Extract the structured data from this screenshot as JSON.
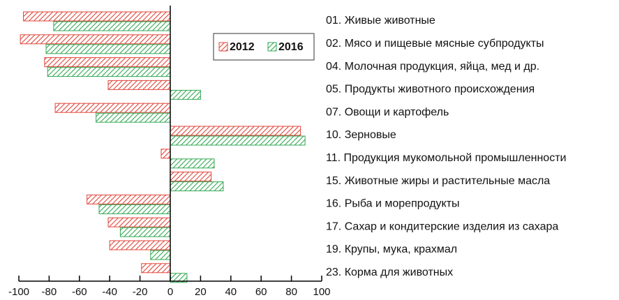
{
  "chart_data": {
    "type": "bar",
    "orientation": "horizontal",
    "categories": [
      "01. Живые животные",
      "02. Мясо и пищевые мясные субпродукты",
      "04. Молочная продукция, яйца, мед и др.",
      "05. Продукты животного происхождения",
      "07. Овощи и картофель",
      "10. Зерновые",
      "11. Продукция мукомольной промышленности",
      "15. Животные жиры и растительные масла",
      "16. Рыба и морепродукты",
      "17. Сахар и кондитерские изделия из сахара",
      "19. Крупы, мука, крахмал",
      "23. Корма для животных"
    ],
    "series": [
      {
        "name": "2012",
        "color": "#e0453a",
        "values": [
          -97,
          -99,
          -83,
          -41,
          -76,
          86,
          -6,
          27,
          -55,
          -41,
          -40,
          -19
        ]
      },
      {
        "name": "2016",
        "color": "#33a853",
        "values": [
          -77,
          -82,
          -81,
          20,
          -49,
          89,
          29,
          35,
          -47,
          -33,
          -13,
          11
        ]
      }
    ],
    "xlim": [
      -100,
      100
    ],
    "xticks": [
      -100,
      -80,
      -60,
      -40,
      -20,
      0,
      20,
      40,
      60,
      80,
      100
    ],
    "legend": "upper right",
    "hatch": true
  }
}
